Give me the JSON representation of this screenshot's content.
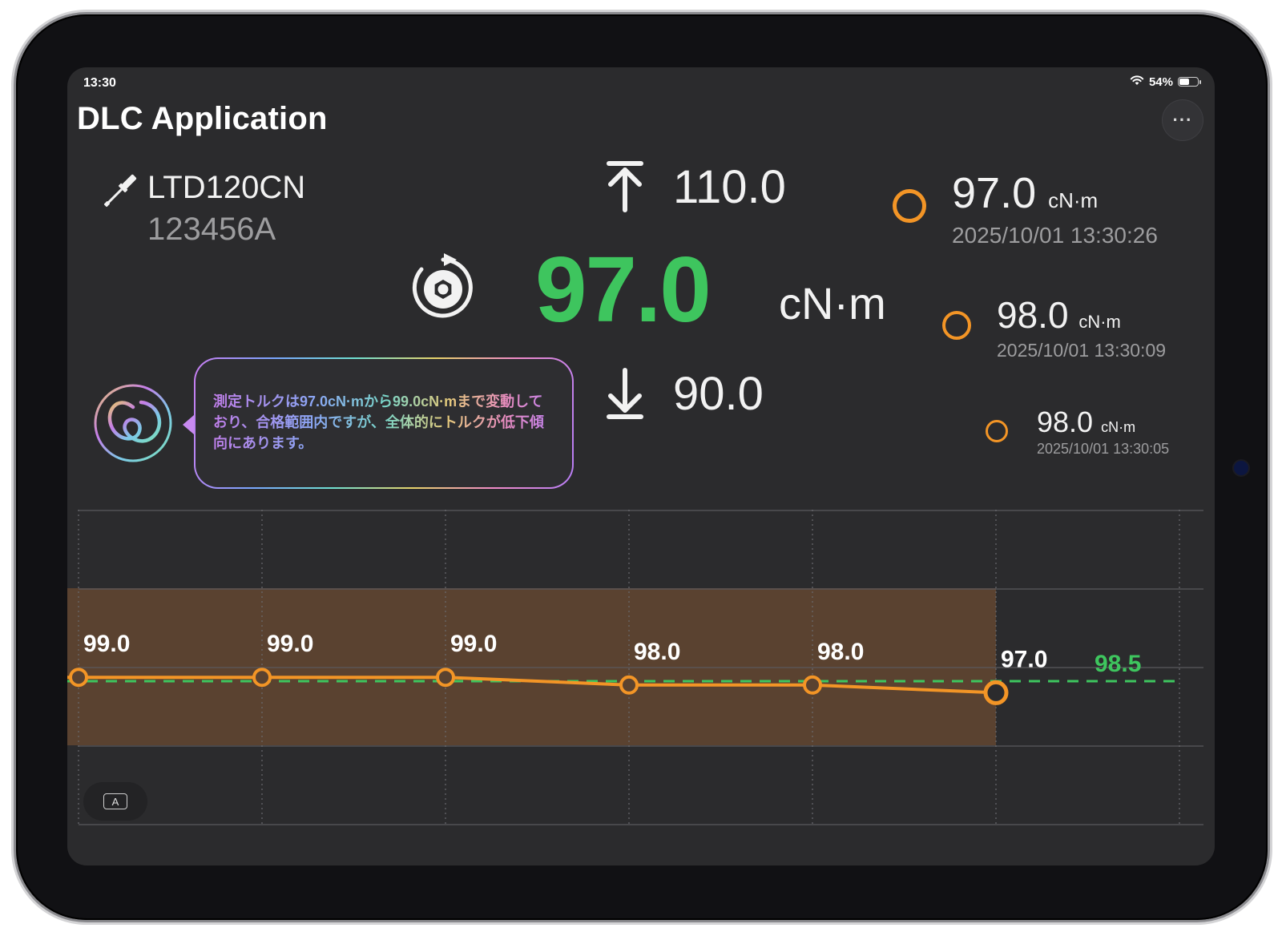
{
  "status_bar": {
    "time": "13:30",
    "battery": "54%"
  },
  "header": {
    "title": "DLC Application",
    "more_label": "···"
  },
  "tool": {
    "model": "LTD120CN",
    "serial": "123456A"
  },
  "limits": {
    "upper": "110.0",
    "lower": "90.0"
  },
  "current": {
    "value": "97.0",
    "unit": "cN·m"
  },
  "history": [
    {
      "value": "97.0",
      "unit": "cN·m",
      "timestamp": "2025/10/01 13:30:26"
    },
    {
      "value": "98.0",
      "unit": "cN·m",
      "timestamp": "2025/10/01 13:30:09"
    },
    {
      "value": "98.0",
      "unit": "cN·m",
      "timestamp": "2025/10/01 13:30:05"
    }
  ],
  "assistant": {
    "message": "測定トルクは97.0cN·mから99.0cN·mまで変動しており、合格範囲内ですが、全体的にトルクが低下傾向にあります。"
  },
  "font_toggle": {
    "label": "A"
  },
  "colors": {
    "accent_green": "#3ec55e",
    "accent_orange": "#f39526",
    "band_fill": "#5a4230",
    "screen_bg": "#2b2b2d"
  },
  "chart_data": {
    "type": "line",
    "x": [
      1,
      2,
      3,
      4,
      5,
      6
    ],
    "series": [
      {
        "values": [
          99.0,
          99.0,
          99.0,
          98.0,
          98.0,
          97.0
        ]
      }
    ],
    "data_labels": [
      "99.0",
      "99.0",
      "99.0",
      "98.0",
      "98.0",
      "97.0"
    ],
    "average_line": {
      "value": 98.5,
      "label": "98.5"
    },
    "ylim": [
      90,
      110
    ],
    "band": {
      "from_x": 1,
      "to_x": 6
    },
    "grid": true
  }
}
